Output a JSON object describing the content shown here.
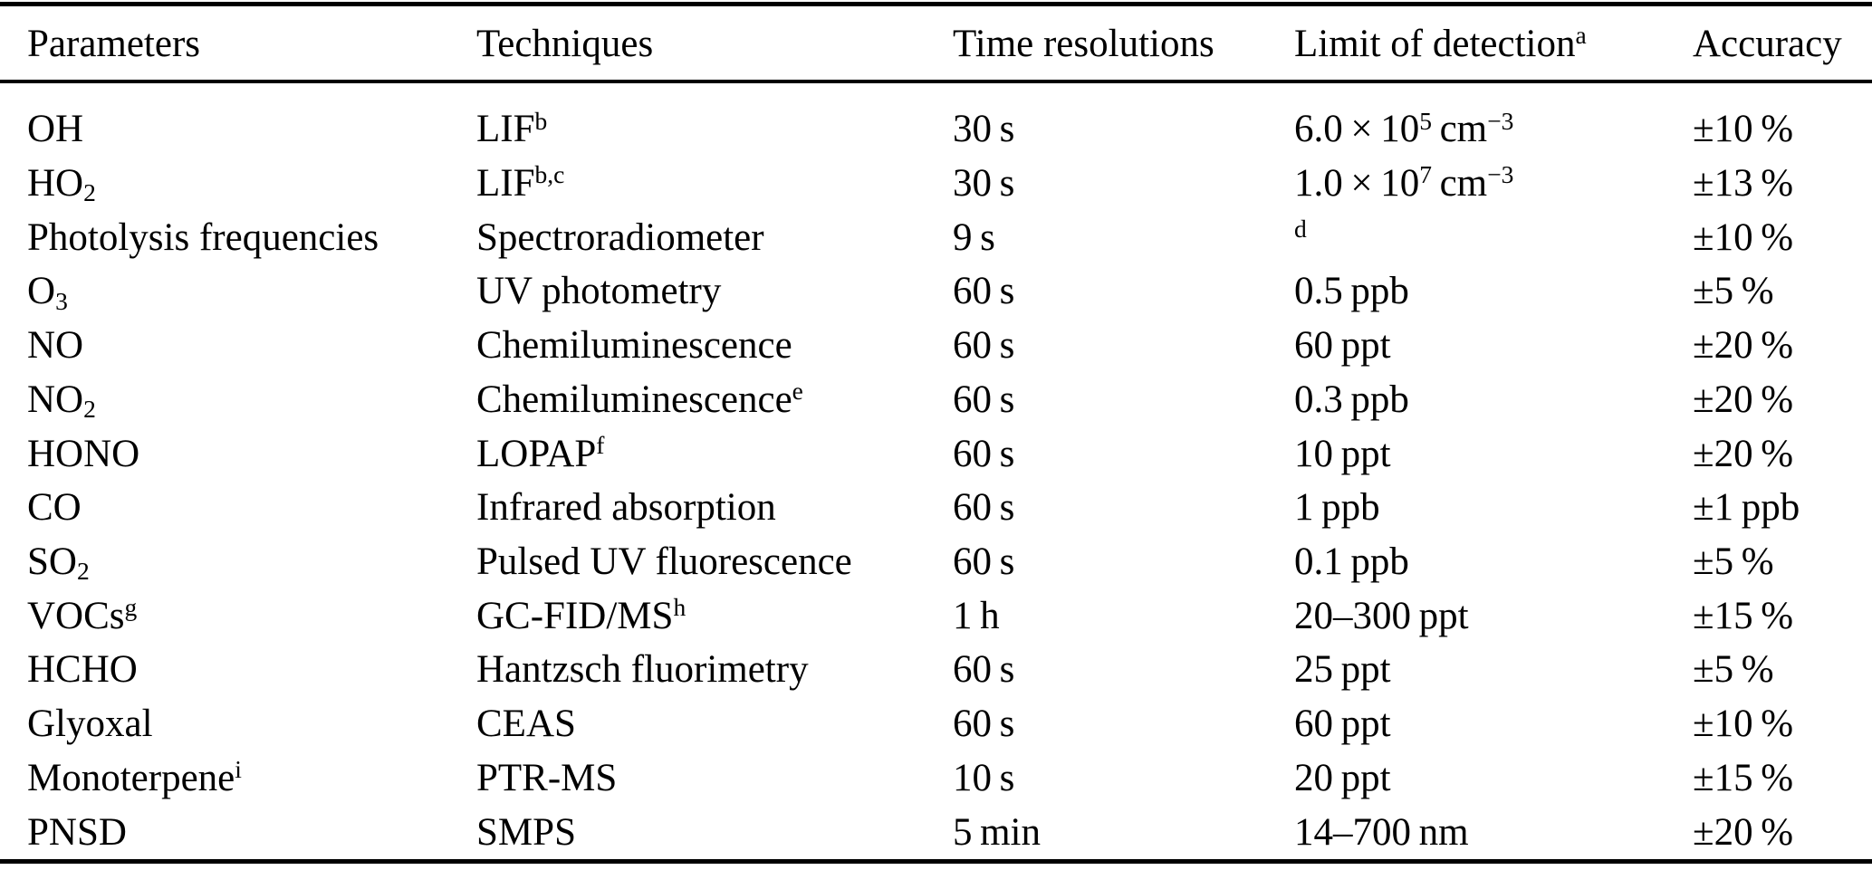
{
  "page": {
    "background": "#ffffff",
    "text_color": "#000000",
    "rule_color": "#000000"
  },
  "table": {
    "headers": [
      {
        "key": "parameter",
        "segments": [
          {
            "text": "Parameters"
          }
        ]
      },
      {
        "key": "technique",
        "segments": [
          {
            "text": "Techniques"
          }
        ]
      },
      {
        "key": "time_resolution",
        "segments": [
          {
            "text": "Time resolutions"
          }
        ]
      },
      {
        "key": "limit_of_detection",
        "segments": [
          {
            "text": "Limit of detection"
          },
          {
            "text": "a",
            "style": "sup"
          }
        ]
      },
      {
        "key": "accuracy",
        "segments": [
          {
            "text": "Accuracy"
          }
        ]
      }
    ],
    "rows": [
      {
        "parameter": [
          {
            "text": "OH"
          }
        ],
        "technique": [
          {
            "text": "LIF"
          },
          {
            "text": "b",
            "style": "sup"
          }
        ],
        "time_resolution": [
          {
            "text": "30 s"
          }
        ],
        "limit_of_detection": [
          {
            "text": "6.0 × 10"
          },
          {
            "text": "5",
            "style": "sup"
          },
          {
            "text": " cm"
          },
          {
            "text": "−3",
            "style": "sup"
          }
        ],
        "accuracy": [
          {
            "text": "±10 %"
          }
        ]
      },
      {
        "parameter": [
          {
            "text": "HO"
          },
          {
            "text": "2",
            "style": "sub"
          }
        ],
        "technique": [
          {
            "text": "LIF"
          },
          {
            "text": "b,c",
            "style": "sup"
          }
        ],
        "time_resolution": [
          {
            "text": "30 s"
          }
        ],
        "limit_of_detection": [
          {
            "text": "1.0 × 10"
          },
          {
            "text": "7",
            "style": "sup"
          },
          {
            "text": " cm"
          },
          {
            "text": "−3",
            "style": "sup"
          }
        ],
        "accuracy": [
          {
            "text": "±13 %"
          }
        ]
      },
      {
        "parameter": [
          {
            "text": "Photolysis frequencies"
          }
        ],
        "technique": [
          {
            "text": "Spectroradiometer"
          }
        ],
        "time_resolution": [
          {
            "text": "9 s"
          }
        ],
        "limit_of_detection": [
          {
            "text": "d",
            "style": "sup"
          }
        ],
        "accuracy": [
          {
            "text": "±10 %"
          }
        ]
      },
      {
        "parameter": [
          {
            "text": "O"
          },
          {
            "text": "3",
            "style": "sub"
          }
        ],
        "technique": [
          {
            "text": "UV photometry"
          }
        ],
        "time_resolution": [
          {
            "text": "60 s"
          }
        ],
        "limit_of_detection": [
          {
            "text": "0.5 ppb"
          }
        ],
        "accuracy": [
          {
            "text": "±5 %"
          }
        ]
      },
      {
        "parameter": [
          {
            "text": "NO"
          }
        ],
        "technique": [
          {
            "text": "Chemiluminescence"
          }
        ],
        "time_resolution": [
          {
            "text": "60 s"
          }
        ],
        "limit_of_detection": [
          {
            "text": "60 ppt"
          }
        ],
        "accuracy": [
          {
            "text": "±20 %"
          }
        ]
      },
      {
        "parameter": [
          {
            "text": "NO"
          },
          {
            "text": "2",
            "style": "sub"
          }
        ],
        "technique": [
          {
            "text": "Chemiluminescence"
          },
          {
            "text": "e",
            "style": "sup"
          }
        ],
        "time_resolution": [
          {
            "text": "60 s"
          }
        ],
        "limit_of_detection": [
          {
            "text": "0.3 ppb"
          }
        ],
        "accuracy": [
          {
            "text": "±20 %"
          }
        ]
      },
      {
        "parameter": [
          {
            "text": "HONO"
          }
        ],
        "technique": [
          {
            "text": "LOPAP"
          },
          {
            "text": "f",
            "style": "sup"
          }
        ],
        "time_resolution": [
          {
            "text": "60 s"
          }
        ],
        "limit_of_detection": [
          {
            "text": "10 ppt"
          }
        ],
        "accuracy": [
          {
            "text": "±20 %"
          }
        ]
      },
      {
        "parameter": [
          {
            "text": "CO"
          }
        ],
        "technique": [
          {
            "text": "Infrared absorption"
          }
        ],
        "time_resolution": [
          {
            "text": "60 s"
          }
        ],
        "limit_of_detection": [
          {
            "text": "1 ppb"
          }
        ],
        "accuracy": [
          {
            "text": "±1 ppb"
          }
        ]
      },
      {
        "parameter": [
          {
            "text": "SO"
          },
          {
            "text": "2",
            "style": "sub"
          }
        ],
        "technique": [
          {
            "text": "Pulsed UV fluorescence"
          }
        ],
        "time_resolution": [
          {
            "text": "60 s"
          }
        ],
        "limit_of_detection": [
          {
            "text": "0.1 ppb"
          }
        ],
        "accuracy": [
          {
            "text": "±5 %"
          }
        ]
      },
      {
        "parameter": [
          {
            "text": "VOCs"
          },
          {
            "text": "g",
            "style": "sup"
          }
        ],
        "technique": [
          {
            "text": "GC-FID/MS"
          },
          {
            "text": "h",
            "style": "sup"
          }
        ],
        "time_resolution": [
          {
            "text": "1 h"
          }
        ],
        "limit_of_detection": [
          {
            "text": "20–300 ppt"
          }
        ],
        "accuracy": [
          {
            "text": "±15 %"
          }
        ]
      },
      {
        "parameter": [
          {
            "text": "HCHO"
          }
        ],
        "technique": [
          {
            "text": "Hantzsch fluorimetry"
          }
        ],
        "time_resolution": [
          {
            "text": "60 s"
          }
        ],
        "limit_of_detection": [
          {
            "text": "25 ppt"
          }
        ],
        "accuracy": [
          {
            "text": "±5 %"
          }
        ]
      },
      {
        "parameter": [
          {
            "text": "Glyoxal"
          }
        ],
        "technique": [
          {
            "text": "CEAS"
          }
        ],
        "time_resolution": [
          {
            "text": "60 s"
          }
        ],
        "limit_of_detection": [
          {
            "text": "60 ppt"
          }
        ],
        "accuracy": [
          {
            "text": "±10 %"
          }
        ]
      },
      {
        "parameter": [
          {
            "text": "Monoterpene"
          },
          {
            "text": "i",
            "style": "sup"
          }
        ],
        "technique": [
          {
            "text": "PTR-MS"
          }
        ],
        "time_resolution": [
          {
            "text": "10 s"
          }
        ],
        "limit_of_detection": [
          {
            "text": "20 ppt"
          }
        ],
        "accuracy": [
          {
            "text": "±15 %"
          }
        ]
      },
      {
        "parameter": [
          {
            "text": "PNSD"
          }
        ],
        "technique": [
          {
            "text": "SMPS"
          }
        ],
        "time_resolution": [
          {
            "text": "5 min"
          }
        ],
        "limit_of_detection": [
          {
            "text": "14–700 nm"
          }
        ],
        "accuracy": [
          {
            "text": "±20 %"
          }
        ]
      }
    ]
  }
}
